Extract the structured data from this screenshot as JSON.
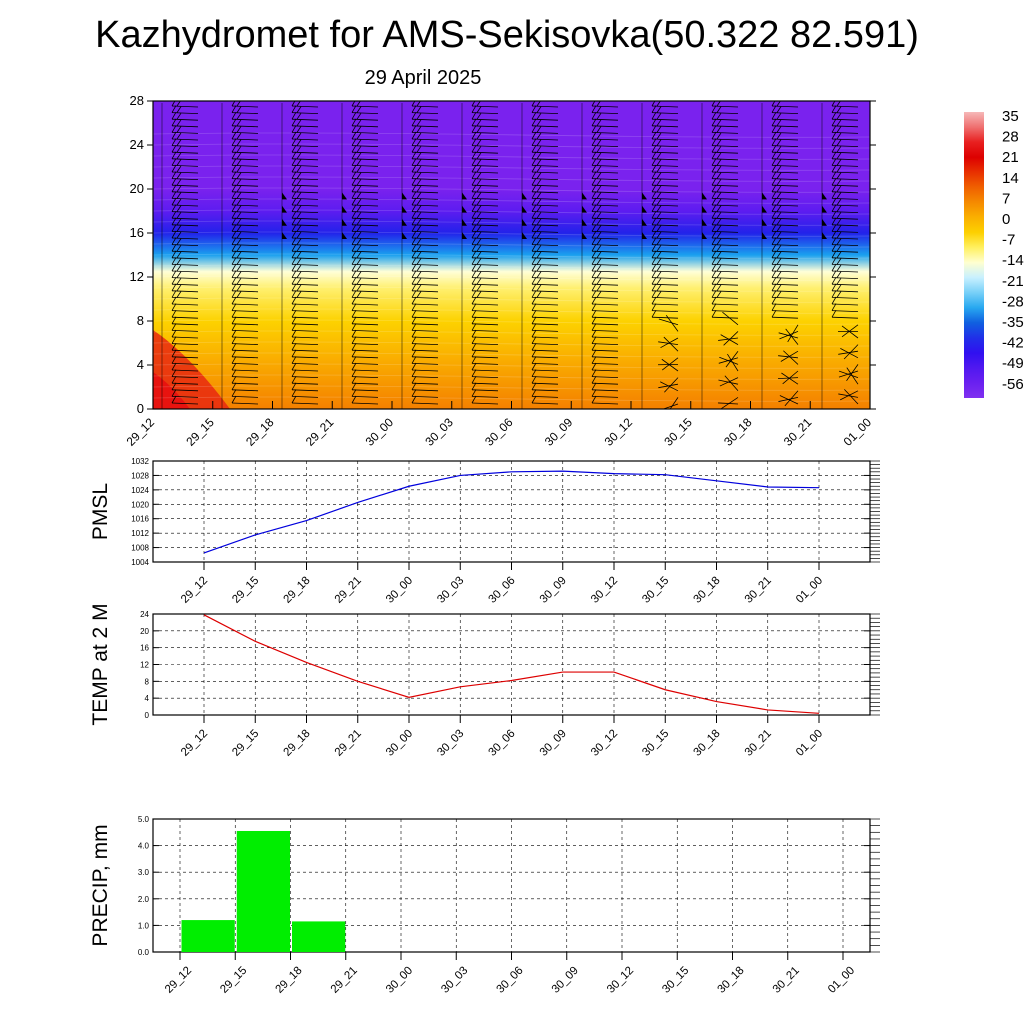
{
  "header": {
    "title": "Kazhydromet for AMS-Sekisovka(50.322 82.591)",
    "date": "29 April 2025"
  },
  "colors": {
    "pmsl_line": "#0000dd",
    "temp_line": "#dd0000",
    "precip_bar": "#00ee00",
    "grid": "#000000"
  },
  "chart_data": [
    {
      "type": "heatmap",
      "name": "cross-section",
      "x": [
        "29_12",
        "29_15",
        "29_18",
        "29_21",
        "30_00",
        "30_03",
        "30_06",
        "30_09",
        "30_12",
        "30_15",
        "30_18",
        "30_21",
        "01_00"
      ],
      "y_ticks": [
        "0",
        "4",
        "8",
        "12",
        "16",
        "20",
        "24",
        "28"
      ],
      "ylim": [
        0,
        28
      ],
      "colorbar_labels": [
        "35",
        "28",
        "21",
        "14",
        "7",
        "0",
        "-7",
        "-14",
        "-21",
        "-28",
        "-35",
        "-42",
        "-49",
        "-56"
      ],
      "colorbar_colors": [
        "#f6b8b8",
        "#ef7070",
        "#e82020",
        "#dd0000",
        "#e83000",
        "#f06000",
        "#f58a00",
        "#fab000",
        "#fdd000",
        "#fff060",
        "#ffffd0",
        "#c8f0ff",
        "#78d0f8",
        "#28a8f0",
        "#1060e0",
        "#2030e8",
        "#3010f0",
        "#5018f0",
        "#6a20f0",
        "#8030f0"
      ],
      "temperature_levels_km": [
        {
          "y": 0,
          "value": 14
        },
        {
          "y": 4,
          "value": 7
        },
        {
          "y": 8,
          "value": 0
        },
        {
          "y": 11,
          "value": -7
        },
        {
          "y": 12.5,
          "value": -14
        },
        {
          "y": 14,
          "value": -28
        },
        {
          "y": 16,
          "value": -42
        },
        {
          "y": 18,
          "value": -49
        },
        {
          "y": 20,
          "value": -56
        },
        {
          "y": 28,
          "value": -56
        }
      ]
    },
    {
      "type": "line",
      "name": "pmsl",
      "ylabel": "PMSL",
      "x": [
        "29_12",
        "29_15",
        "29_18",
        "29_21",
        "30_00",
        "30_03",
        "30_06",
        "30_09",
        "30_12",
        "30_15",
        "30_18",
        "30_21",
        "01_00"
      ],
      "y_ticks": [
        "1004",
        "1008",
        "1012",
        "1016",
        "1020",
        "1024",
        "1028",
        "1032"
      ],
      "ylim": [
        1004,
        1032
      ],
      "values": [
        1006.5,
        1011.5,
        1015.5,
        1020.5,
        1025,
        1028,
        1029,
        1029.2,
        1028.5,
        1028.2,
        1026.5,
        1024.8,
        1024.6
      ]
    },
    {
      "type": "line",
      "name": "temp",
      "ylabel": "TEMP at 2 M",
      "x": [
        "29_12",
        "29_15",
        "29_18",
        "29_21",
        "30_00",
        "30_03",
        "30_06",
        "30_09",
        "30_12",
        "30_15",
        "30_18",
        "30_21",
        "01_00"
      ],
      "y_ticks": [
        "0",
        "4",
        "8",
        "12",
        "16",
        "20",
        "24"
      ],
      "ylim": [
        0,
        24
      ],
      "values": [
        23.8,
        17.5,
        12.5,
        8,
        4.2,
        6.7,
        8.2,
        10.2,
        10.2,
        6,
        3.2,
        1.2,
        0.4
      ]
    },
    {
      "type": "bar",
      "name": "precip",
      "ylabel": "PRECIP, mm",
      "x": [
        "29_12",
        "29_15",
        "29_18",
        "29_21",
        "30_00",
        "30_03",
        "30_06",
        "30_09",
        "30_12",
        "30_15",
        "30_18",
        "30_21",
        "01_00"
      ],
      "y_ticks": [
        "0.0",
        "1.0",
        "2.0",
        "3.0",
        "4.0",
        "5.0"
      ],
      "ylim": [
        0,
        5
      ],
      "values": [
        0,
        1.2,
        4.55,
        1.15,
        0,
        0,
        0,
        0,
        0,
        0,
        0,
        0,
        0
      ]
    }
  ]
}
